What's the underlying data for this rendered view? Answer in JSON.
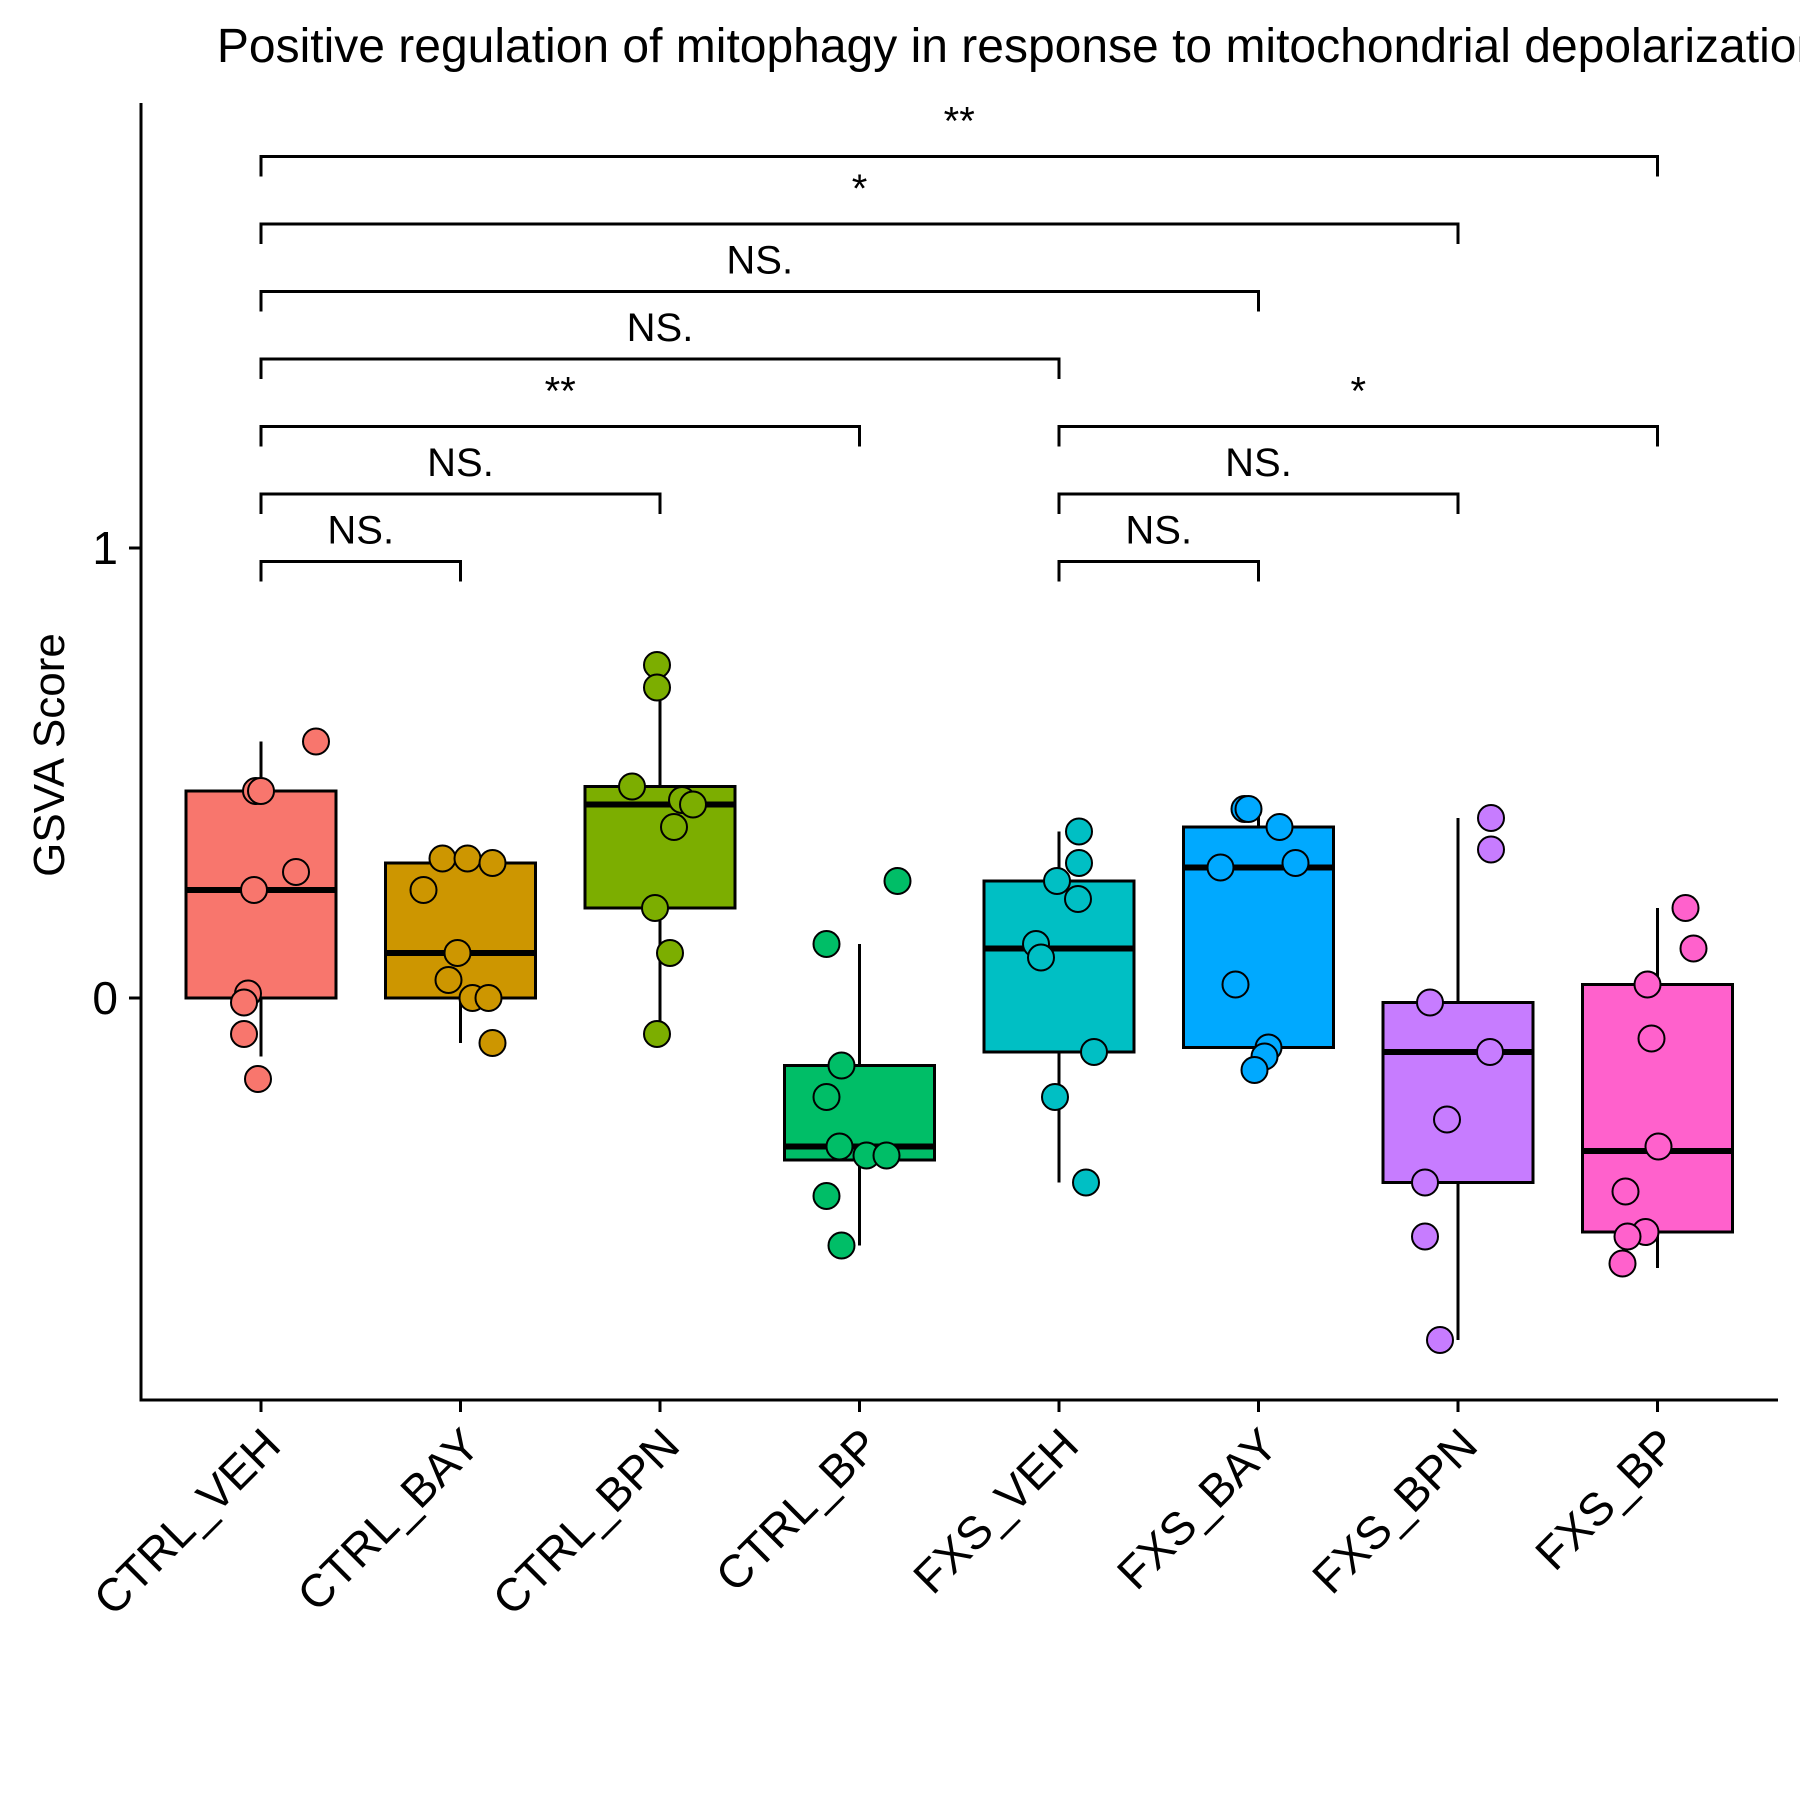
{
  "chart_data": {
    "type": "box",
    "title": "Positive regulation of mitophagy in response to mitochondrial depolarization",
    "xlabel": "",
    "ylabel": "GSVA Score",
    "ylim": [
      -0.9,
      2.0
    ],
    "yticks": [
      0,
      1
    ],
    "grid": false,
    "legend": "none",
    "categories": [
      "CTRL_VEH",
      "CTRL_BAY",
      "CTRL_BPN",
      "CTRL_BP",
      "FXS_VEH",
      "FXS_BAY",
      "FXS_BPN",
      "FXS_BP"
    ],
    "colors": [
      "#F8766D",
      "#CD9600",
      "#7CAE00",
      "#00BE67",
      "#00BFC4",
      "#00A9FF",
      "#C77CFF",
      "#FF61CC"
    ],
    "boxes": [
      {
        "q1": 0.0,
        "median": 0.24,
        "q3": 0.46,
        "lo": -0.13,
        "hi": 0.57
      },
      {
        "q1": 0.0,
        "median": 0.1,
        "q3": 0.3,
        "lo": -0.1,
        "hi": 0.31
      },
      {
        "q1": 0.2,
        "median": 0.43,
        "q3": 0.47,
        "lo": -0.08,
        "hi": 0.74
      },
      {
        "q1": -0.36,
        "median": -0.33,
        "q3": -0.15,
        "lo": -0.55,
        "hi": 0.12
      },
      {
        "q1": -0.12,
        "median": 0.11,
        "q3": 0.26,
        "lo": -0.41,
        "hi": 0.37
      },
      {
        "q1": -0.11,
        "median": 0.29,
        "q3": 0.38,
        "lo": -0.16,
        "hi": 0.42
      },
      {
        "q1": -0.41,
        "median": -0.12,
        "q3": -0.01,
        "lo": -0.76,
        "hi": 0.4
      },
      {
        "q1": -0.52,
        "median": -0.34,
        "q3": 0.03,
        "lo": -0.6,
        "hi": 0.2
      }
    ],
    "points": [
      [
        [
          0.55,
          0.57
        ],
        [
          -0.05,
          0.46
        ],
        [
          0.0,
          0.46
        ],
        [
          0.35,
          0.28
        ],
        [
          -0.07,
          0.24
        ],
        [
          -0.13,
          0.01
        ],
        [
          -0.17,
          -0.01
        ],
        [
          -0.17,
          -0.08
        ],
        [
          -0.03,
          -0.18
        ]
      ],
      [
        [
          -0.18,
          0.31
        ],
        [
          0.07,
          0.31
        ],
        [
          0.32,
          0.3
        ],
        [
          -0.37,
          0.24
        ],
        [
          -0.03,
          0.1
        ],
        [
          -0.12,
          0.04
        ],
        [
          0.12,
          0.0
        ],
        [
          0.28,
          0.0
        ],
        [
          0.32,
          -0.1
        ]
      ],
      [
        [
          -0.03,
          0.74
        ],
        [
          -0.03,
          0.69
        ],
        [
          -0.28,
          0.47
        ],
        [
          0.22,
          0.44
        ],
        [
          0.33,
          0.43
        ],
        [
          0.14,
          0.38
        ],
        [
          -0.05,
          0.2
        ],
        [
          0.1,
          0.1
        ],
        [
          -0.03,
          -0.08
        ]
      ],
      [
        [
          0.38,
          0.26
        ],
        [
          -0.33,
          0.12
        ],
        [
          -0.18,
          -0.15
        ],
        [
          -0.33,
          -0.22
        ],
        [
          -0.2,
          -0.33
        ],
        [
          0.07,
          -0.35
        ],
        [
          0.27,
          -0.35
        ],
        [
          -0.33,
          -0.44
        ],
        [
          -0.18,
          -0.55
        ]
      ],
      [
        [
          0.2,
          0.37
        ],
        [
          0.2,
          0.3
        ],
        [
          -0.02,
          0.26
        ],
        [
          0.19,
          0.22
        ],
        [
          -0.23,
          0.12
        ],
        [
          -0.18,
          0.09
        ],
        [
          0.35,
          -0.12
        ],
        [
          -0.04,
          -0.22
        ],
        [
          0.27,
          -0.41
        ]
      ],
      [
        [
          -0.14,
          0.42
        ],
        [
          -0.1,
          0.42
        ],
        [
          0.21,
          0.38
        ],
        [
          0.37,
          0.3
        ],
        [
          -0.38,
          0.29
        ],
        [
          -0.23,
          0.03
        ],
        [
          0.1,
          -0.11
        ],
        [
          0.06,
          -0.13
        ],
        [
          -0.04,
          -0.16
        ]
      ],
      [
        [
          0.33,
          0.4
        ],
        [
          0.33,
          0.33
        ],
        [
          -0.28,
          -0.01
        ],
        [
          0.32,
          -0.12
        ],
        [
          -0.11,
          -0.27
        ],
        [
          -0.33,
          -0.41
        ],
        [
          -0.33,
          -0.53
        ],
        [
          -0.18,
          -0.76
        ]
      ],
      [
        [
          0.28,
          0.2
        ],
        [
          0.36,
          0.11
        ],
        [
          -0.1,
          0.03
        ],
        [
          -0.06,
          -0.09
        ],
        [
          0.01,
          -0.33
        ],
        [
          -0.32,
          -0.43
        ],
        [
          -0.12,
          -0.52
        ],
        [
          -0.3,
          -0.53
        ],
        [
          -0.35,
          -0.59
        ]
      ]
    ],
    "comparisons": [
      {
        "from": 0,
        "to": 1,
        "y": 0.97,
        "label": "NS."
      },
      {
        "from": 0,
        "to": 2,
        "y": 1.12,
        "label": "NS."
      },
      {
        "from": 0,
        "to": 3,
        "y": 1.27,
        "label": "**"
      },
      {
        "from": 0,
        "to": 4,
        "y": 1.42,
        "label": "NS."
      },
      {
        "from": 0,
        "to": 5,
        "y": 1.57,
        "label": "NS."
      },
      {
        "from": 0,
        "to": 6,
        "y": 1.72,
        "label": "*"
      },
      {
        "from": 0,
        "to": 7,
        "y": 1.87,
        "label": "**"
      },
      {
        "from": 4,
        "to": 5,
        "y": 0.97,
        "label": "NS."
      },
      {
        "from": 4,
        "to": 6,
        "y": 1.12,
        "label": "NS."
      },
      {
        "from": 4,
        "to": 7,
        "y": 1.27,
        "label": "*"
      }
    ]
  }
}
